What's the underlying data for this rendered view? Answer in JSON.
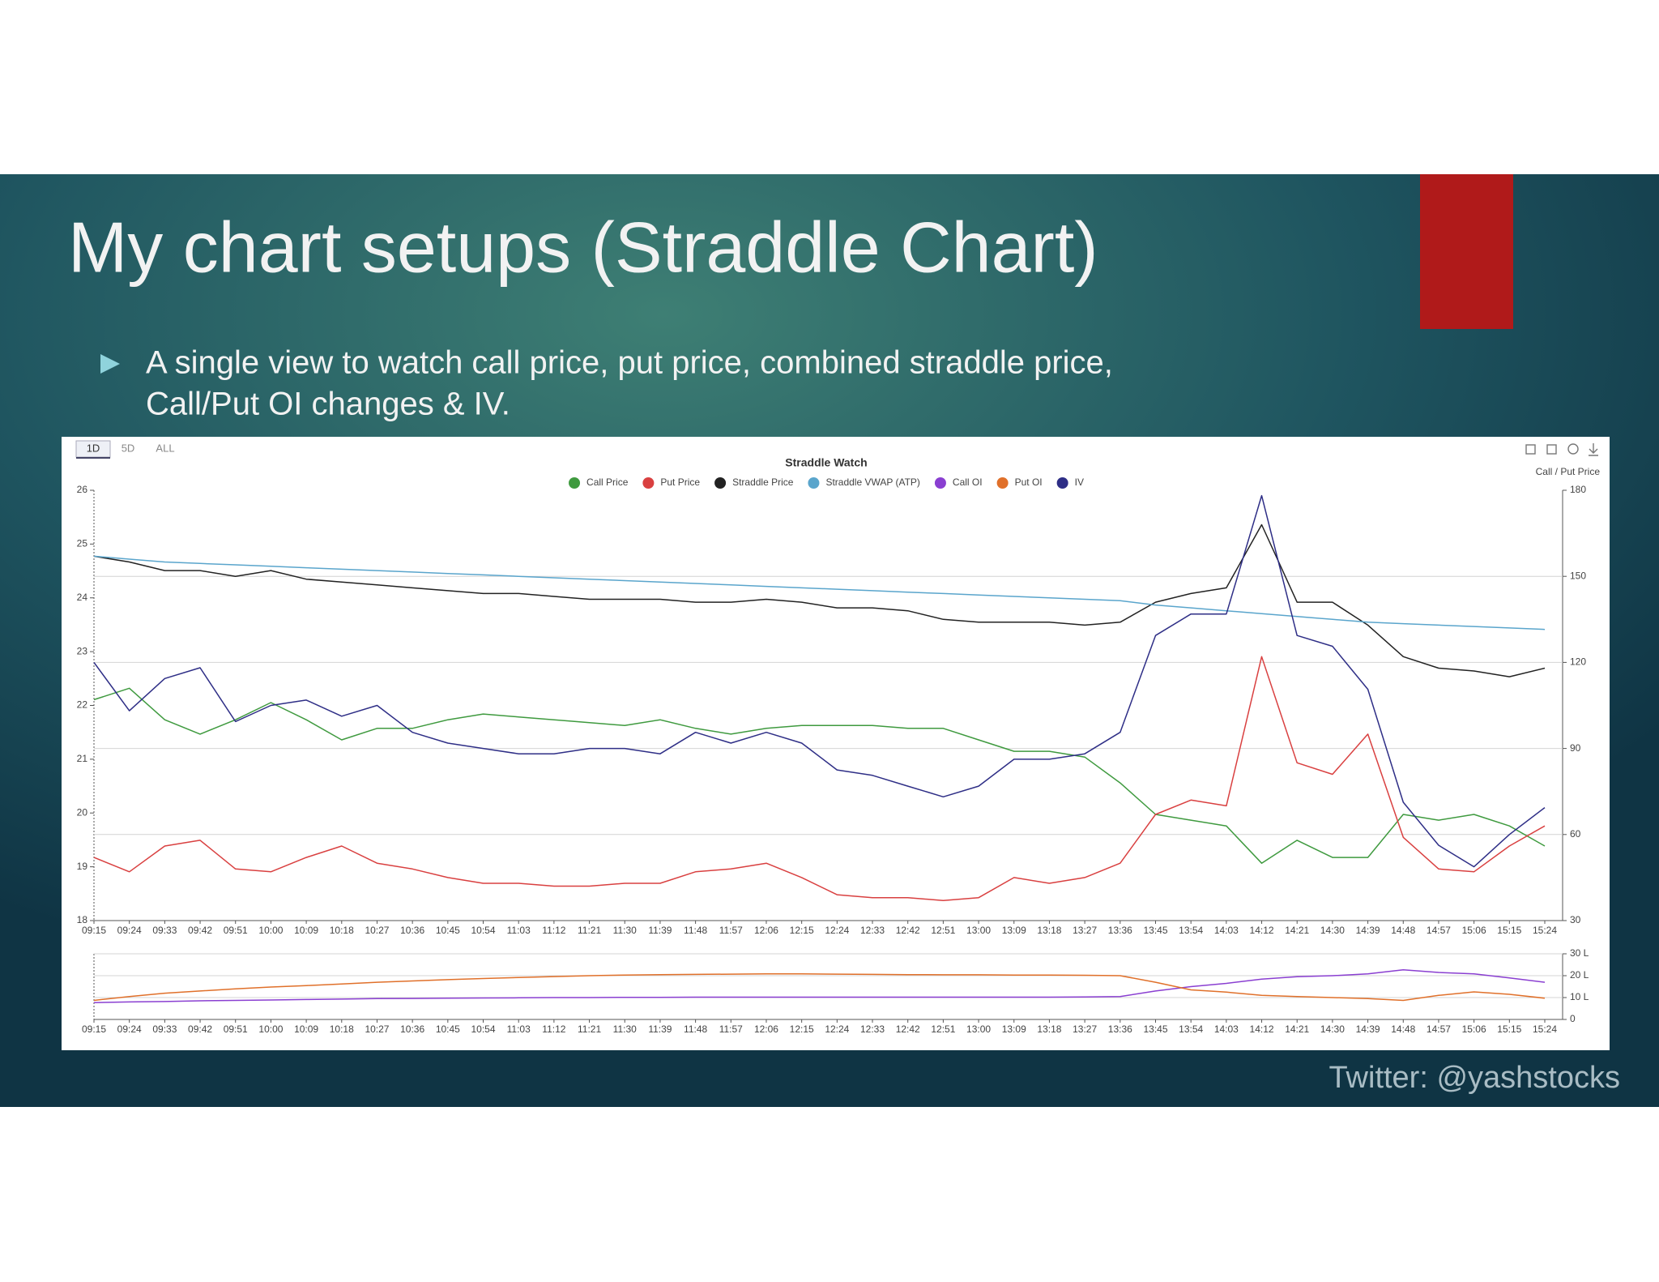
{
  "slide": {
    "title": "My chart setups (Straddle Chart)",
    "bullet": [
      "A single view to watch call price, put price, combined straddle price,",
      "Call/Put OI changes & IV."
    ],
    "footer": "Twitter: @yashstocks"
  },
  "toolbar": {
    "tabs": [
      "1D",
      "5D",
      "ALL"
    ]
  },
  "chart_data": [
    {
      "type": "line",
      "title": "Straddle Watch",
      "y2label": "Call / Put Price",
      "categories": [
        "09:15",
        "09:24",
        "09:33",
        "09:42",
        "09:51",
        "10:00",
        "10:09",
        "10:18",
        "10:27",
        "10:36",
        "10:45",
        "10:54",
        "11:03",
        "11:12",
        "11:21",
        "11:30",
        "11:39",
        "11:48",
        "11:57",
        "12:06",
        "12:15",
        "12:24",
        "12:33",
        "12:42",
        "12:51",
        "13:00",
        "13:09",
        "13:18",
        "13:27",
        "13:36",
        "13:45",
        "13:54",
        "14:03",
        "14:12",
        "14:21",
        "14:30",
        "14:39",
        "14:48",
        "14:57",
        "15:06",
        "15:15",
        "15:24"
      ],
      "ylim": [
        18,
        26
      ],
      "yticks": [
        18,
        19,
        20,
        21,
        22,
        23,
        24,
        25,
        26
      ],
      "y2lim": [
        30,
        180
      ],
      "y2ticks": [
        30,
        60,
        90,
        120,
        150,
        180
      ],
      "grid": true,
      "series": [
        {
          "name": "Call Price",
          "color": "#3f9a3f",
          "axis": "y2",
          "values": [
            107,
            111,
            100,
            95,
            100,
            106,
            100,
            93,
            97,
            97,
            100,
            102,
            101,
            100,
            99,
            98,
            100,
            97,
            95,
            97,
            98,
            98,
            98,
            97,
            97,
            93,
            89,
            89,
            87,
            78,
            67,
            65,
            63,
            50,
            58,
            52,
            52,
            67,
            65,
            67,
            63,
            56
          ]
        },
        {
          "name": "Put Price",
          "color": "#d94040",
          "axis": "y2",
          "values": [
            52,
            47,
            56,
            58,
            48,
            47,
            52,
            56,
            50,
            48,
            45,
            43,
            43,
            42,
            42,
            43,
            43,
            47,
            48,
            50,
            45,
            39,
            38,
            38,
            37,
            38,
            45,
            43,
            45,
            50,
            67,
            72,
            70,
            122,
            85,
            81,
            95,
            59,
            48,
            47,
            56,
            63
          ]
        },
        {
          "name": "Straddle Price",
          "color": "#222222",
          "axis": "y2",
          "values": [
            157,
            155,
            152,
            152,
            150,
            152,
            149,
            148,
            147,
            146,
            145,
            144,
            144,
            143,
            142,
            142,
            142,
            141,
            141,
            142,
            141,
            139,
            139,
            138,
            135,
            134,
            134,
            134,
            133,
            134,
            141,
            144,
            146,
            168,
            141,
            141,
            133,
            122,
            118,
            117,
            115,
            118
          ]
        },
        {
          "name": "Straddle VWAP (ATP)",
          "color": "#5aa5cc",
          "axis": "y2",
          "values": [
            157,
            156,
            155,
            154.5,
            154,
            153.5,
            153,
            152.5,
            152,
            151.5,
            151,
            150.5,
            150,
            149.5,
            149,
            148.5,
            148,
            147.5,
            147,
            146.5,
            146,
            145.5,
            145,
            144.5,
            144,
            143.5,
            143,
            142.5,
            142,
            141.5,
            140,
            139,
            138,
            137,
            136,
            135,
            134,
            133.5,
            133,
            132.5,
            132,
            131.5
          ]
        },
        {
          "name": "IV",
          "color": "#2e2e86",
          "values": [
            22.8,
            21.9,
            22.5,
            22.7,
            21.7,
            22.0,
            22.1,
            21.8,
            22.0,
            21.5,
            21.3,
            21.2,
            21.1,
            21.1,
            21.2,
            21.2,
            21.1,
            21.5,
            21.3,
            21.5,
            21.3,
            20.8,
            20.7,
            20.5,
            20.3,
            20.5,
            21.0,
            21.0,
            21.1,
            21.5,
            23.3,
            23.7,
            23.7,
            25.9,
            23.3,
            23.1,
            22.3,
            20.2,
            19.4,
            19.0,
            19.6,
            20.1
          ]
        }
      ]
    },
    {
      "type": "line",
      "categories": [
        "09:15",
        "09:24",
        "09:33",
        "09:42",
        "09:51",
        "10:00",
        "10:09",
        "10:18",
        "10:27",
        "10:36",
        "10:45",
        "10:54",
        "11:03",
        "11:12",
        "11:21",
        "11:30",
        "11:39",
        "11:48",
        "11:57",
        "12:06",
        "12:15",
        "12:24",
        "12:33",
        "12:42",
        "12:51",
        "13:00",
        "13:09",
        "13:18",
        "13:27",
        "13:36",
        "13:45",
        "13:54",
        "14:03",
        "14:12",
        "14:21",
        "14:30",
        "14:39",
        "14:48",
        "14:57",
        "15:06",
        "15:15",
        "15:24"
      ],
      "ylim": [
        0,
        30
      ],
      "yticks": [
        0,
        {
          "value": 10,
          "label": "10 L"
        },
        {
          "value": 20,
          "label": "20 L"
        },
        {
          "value": 30,
          "label": "30 L"
        }
      ],
      "grid": true,
      "series": [
        {
          "name": "Call OI",
          "color": "#8a3fd1",
          "values": [
            7.7,
            8,
            8.2,
            8.5,
            8.7,
            8.9,
            9.1,
            9.3,
            9.5,
            9.6,
            9.7,
            9.8,
            9.9,
            10,
            10,
            10.1,
            10.1,
            10.2,
            10.2,
            10.2,
            10.2,
            10.2,
            10.2,
            10.2,
            10.2,
            10.2,
            10.2,
            10.2,
            10.3,
            10.5,
            13,
            15,
            16.5,
            18.4,
            19.5,
            20,
            20.8,
            22.7,
            21.5,
            20.8,
            19,
            17
          ]
        },
        {
          "name": "Put OI",
          "color": "#e0702a",
          "values": [
            8.7,
            10.5,
            12,
            13,
            14,
            14.8,
            15.5,
            16.2,
            17,
            17.6,
            18.2,
            18.7,
            19.2,
            19.6,
            20,
            20.3,
            20.5,
            20.6,
            20.7,
            20.8,
            20.8,
            20.7,
            20.6,
            20.5,
            20.4,
            20.4,
            20.3,
            20.3,
            20.2,
            20,
            17,
            13.5,
            12.5,
            11,
            10.5,
            10,
            9.5,
            8.7,
            11,
            12.6,
            11.5,
            9.7
          ]
        }
      ]
    }
  ]
}
